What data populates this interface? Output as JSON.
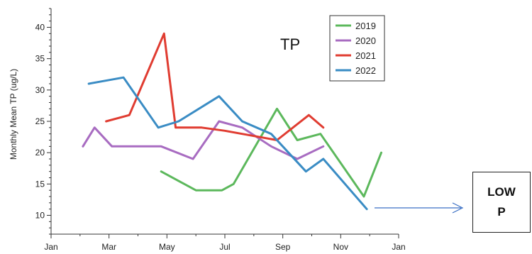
{
  "chart_data": {
    "type": "line",
    "title": "",
    "annotation": "TP",
    "xlabel": "",
    "ylabel": "Monthly Mean TP (ug/L)",
    "xlim": [
      1,
      13
    ],
    "ylim": [
      7,
      43
    ],
    "x_ticks": [
      1,
      3,
      5,
      7,
      9,
      11,
      13
    ],
    "x_tick_labels": [
      "Jan",
      "Mar",
      "May",
      "Jul",
      "Sep",
      "Nov",
      "Jan"
    ],
    "y_ticks": [
      10,
      15,
      20,
      25,
      30,
      35,
      40
    ],
    "grid": false,
    "legend_position": "top-right",
    "series": [
      {
        "name": "2019",
        "color": "#5cb85c",
        "x": [
          4.8,
          6.0,
          6.9,
          7.3,
          8.8,
          9.5,
          10.3,
          11.8,
          12.4
        ],
        "y": [
          17,
          14,
          14,
          15,
          27,
          22,
          23,
          13,
          20
        ]
      },
      {
        "name": "2020",
        "color": "#a86cc1",
        "x": [
          2.1,
          2.5,
          3.1,
          4.8,
          5.9,
          6.8,
          7.6,
          8.6,
          9.5,
          10.4
        ],
        "y": [
          21,
          24,
          21,
          21,
          19,
          25,
          24,
          21,
          19,
          21
        ]
      },
      {
        "name": "2021",
        "color": "#e03c31",
        "x": [
          2.9,
          3.7,
          4.9,
          5.3,
          6.2,
          7.0,
          8.8,
          9.9,
          10.4
        ],
        "y": [
          25,
          26,
          39,
          24,
          24,
          23.5,
          22,
          26,
          24
        ]
      },
      {
        "name": "2022",
        "color": "#3a8cc4",
        "x": [
          2.3,
          3.5,
          4.7,
          5.4,
          6.8,
          7.6,
          8.6,
          9.8,
          10.4,
          11.9
        ],
        "y": [
          31,
          32,
          24,
          25,
          29,
          25,
          23,
          17,
          19,
          11
        ]
      }
    ]
  },
  "side_note": {
    "line1": "LOW",
    "line2": "P"
  }
}
